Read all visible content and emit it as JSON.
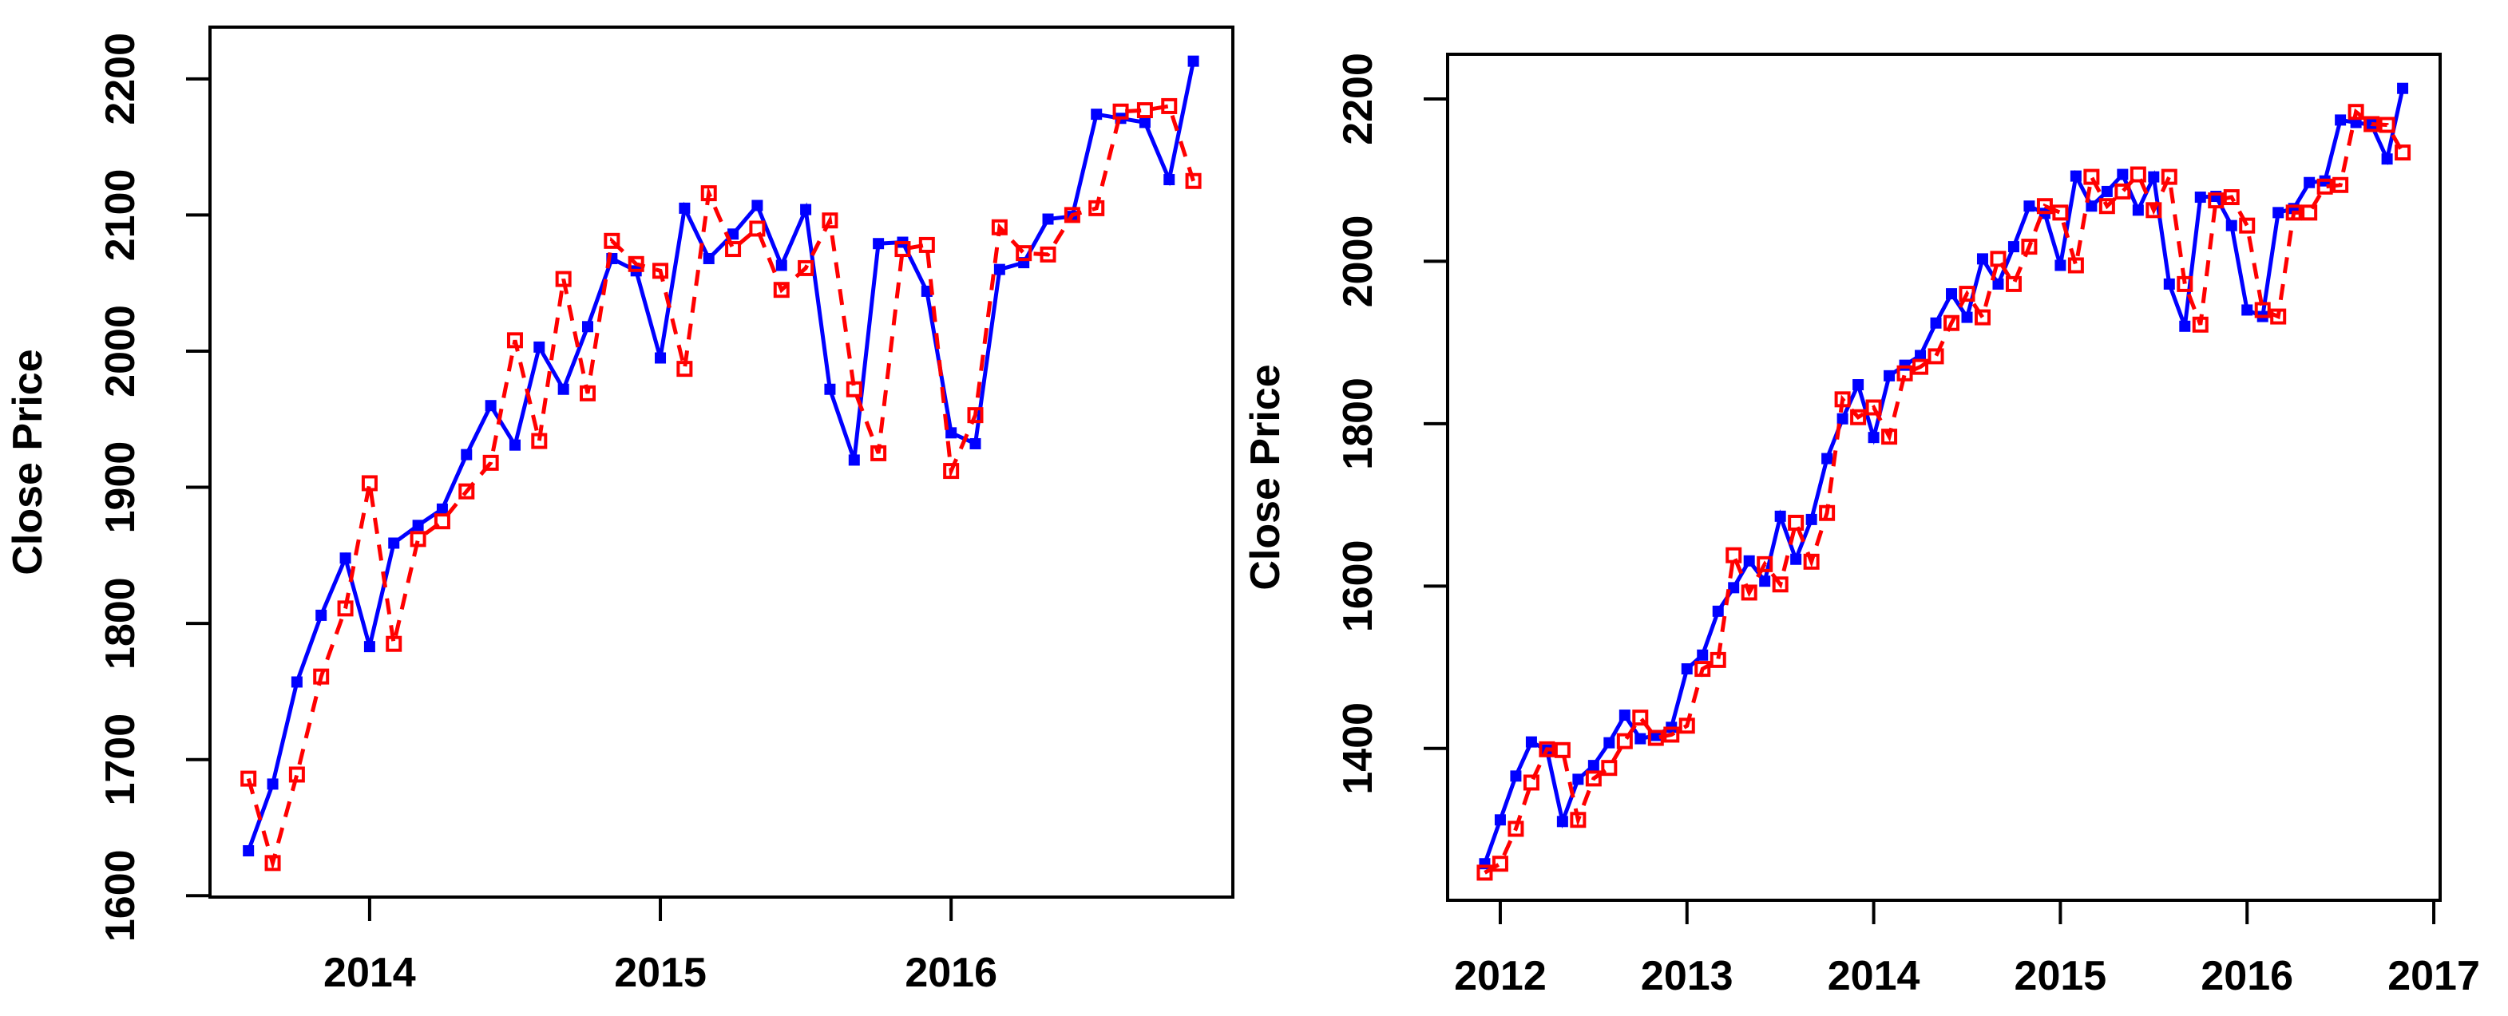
{
  "page": {
    "background": "#FFFFFF",
    "description": "Two R-style time series panels of monthly close prices: actual (blue solid, filled squares) vs one-step-ahead predicted (red dashed, open squares)."
  },
  "chart_data": [
    {
      "type": "line",
      "title": "",
      "xlabel": "",
      "ylabel": "Close Price",
      "grid": false,
      "legend": "none",
      "xlim": [
        2013.451,
        2016.969
      ],
      "ylim": [
        1599,
        2238
      ],
      "xticks": [
        2014,
        2015,
        2016
      ],
      "xtick_labels": [
        "2014",
        "2015",
        "2016"
      ],
      "yticks": [
        1600,
        1700,
        1800,
        1900,
        2000,
        2100,
        2200
      ],
      "ytick_labels": [
        "1600",
        "1700",
        "1800",
        "1900",
        "2000",
        "2100",
        "2200"
      ],
      "x": [
        2013.5833,
        2013.6667,
        2013.75,
        2013.8333,
        2013.9167,
        2014,
        2014.0833,
        2014.1667,
        2014.25,
        2014.3333,
        2014.4167,
        2014.5,
        2014.5833,
        2014.6667,
        2014.75,
        2014.8333,
        2014.9167,
        2015,
        2015.0833,
        2015.1667,
        2015.25,
        2015.3333,
        2015.4167,
        2015.5,
        2015.5833,
        2015.6667,
        2015.75,
        2015.8333,
        2015.9167,
        2016,
        2016.0833,
        2016.1667,
        2016.25,
        2016.3333,
        2016.4167,
        2016.5,
        2016.5833,
        2016.6667,
        2016.75,
        2016.8333
      ],
      "series": [
        {
          "name": "actual",
          "color": "#0000FF",
          "line_style": "solid",
          "marker": "filled-square",
          "values": [
            1633,
            1682,
            1757,
            1806,
            1848,
            1783,
            1859,
            1872,
            1884,
            1924,
            1960,
            1931,
            2003,
            1972,
            2018,
            2068,
            2059,
            1995,
            2105,
            2068,
            2086,
            2107,
            2063,
            2104,
            1972,
            1920,
            2079,
            2080,
            2044,
            1940,
            1932,
            2060,
            2065,
            2097,
            2099,
            2174,
            2171,
            2168,
            2126,
            2213
          ]
        },
        {
          "name": "predicted",
          "color": "#FF0000",
          "line_style": "dashed",
          "marker": "open-square",
          "values": [
            1686,
            1624,
            1689,
            1761,
            1811,
            1903,
            1785,
            1862,
            1875,
            1897,
            1918,
            2008,
            1934,
            2053,
            1969,
            2081,
            2064,
            2059,
            1987,
            2116,
            2075,
            2090,
            2045,
            2061,
            2096,
            1972,
            1925,
            2075,
            2078,
            1912,
            1953,
            2091,
            2072,
            2071,
            2100,
            2105,
            2176,
            2177,
            2180,
            2125
          ]
        }
      ]
    },
    {
      "type": "line",
      "title": "",
      "xlabel": "",
      "ylabel": "Close Price",
      "grid": false,
      "legend": "none",
      "xlim": [
        2011.718,
        2017.034
      ],
      "ylim": [
        1213,
        2255
      ],
      "xticks": [
        2012,
        2013,
        2014,
        2015,
        2016,
        2017
      ],
      "xtick_labels": [
        "2012",
        "2013",
        "2014",
        "2015",
        "2016",
        "2017"
      ],
      "yticks": [
        1400,
        1600,
        1800,
        2000,
        2200
      ],
      "ytick_labels": [
        "1400",
        "1600",
        "1800",
        "2000",
        "2200"
      ],
      "x": [
        2011.9167,
        2012,
        2012.0833,
        2012.1667,
        2012.25,
        2012.3333,
        2012.4167,
        2012.5,
        2012.5833,
        2012.6667,
        2012.75,
        2012.8333,
        2012.9167,
        2013,
        2013.0833,
        2013.1667,
        2013.25,
        2013.3333,
        2013.4167,
        2013.5,
        2013.5833,
        2013.6667,
        2013.75,
        2013.8333,
        2013.9167,
        2014,
        2014.0833,
        2014.1667,
        2014.25,
        2014.3333,
        2014.4167,
        2014.5,
        2014.5833,
        2014.6667,
        2014.75,
        2014.8333,
        2014.9167,
        2015,
        2015.0833,
        2015.1667,
        2015.25,
        2015.3333,
        2015.4167,
        2015.5,
        2015.5833,
        2015.6667,
        2015.75,
        2015.8333,
        2015.9167,
        2016,
        2016.0833,
        2016.1667,
        2016.25,
        2016.3333,
        2016.4167,
        2016.5,
        2016.5833,
        2016.6667,
        2016.75,
        2016.8333
      ],
      "series": [
        {
          "name": "actual",
          "color": "#0000FF",
          "line_style": "solid",
          "marker": "filled-square",
          "values": [
            1258,
            1312,
            1366,
            1408,
            1398,
            1310,
            1362,
            1379,
            1407,
            1441,
            1412,
            1416,
            1426,
            1498,
            1515,
            1569,
            1598,
            1631,
            1606,
            1686,
            1633,
            1682,
            1757,
            1806,
            1848,
            1783,
            1859,
            1872,
            1884,
            1924,
            1960,
            1931,
            2003,
            1972,
            2018,
            2068,
            2059,
            1995,
            2105,
            2068,
            2086,
            2107,
            2063,
            2104,
            1972,
            1920,
            2079,
            2080,
            2044,
            1940,
            1932,
            2060,
            2065,
            2097,
            2099,
            2174,
            2171,
            2168,
            2126,
            2213
          ]
        },
        {
          "name": "predicted",
          "color": "#FF0000",
          "line_style": "dashed",
          "marker": "open-square",
          "values": [
            1247,
            1258,
            1301,
            1358,
            1399,
            1398,
            1312,
            1363,
            1376,
            1409,
            1438,
            1413,
            1417,
            1428,
            1498,
            1509,
            1638,
            1592,
            1627,
            1602,
            1678,
            1630,
            1690,
            1830,
            1808,
            1820,
            1784,
            1862,
            1870,
            1883,
            1924,
            1960,
            1931,
            2003,
            1972,
            2018,
            2068,
            2060,
            1995,
            2104,
            2068,
            2086,
            2107,
            2063,
            2104,
            1972,
            1922,
            2075,
            2079,
            2044,
            1940,
            1932,
            2060,
            2060,
            2092,
            2094,
            2184,
            2169,
            2168,
            2134
          ]
        }
      ]
    }
  ]
}
